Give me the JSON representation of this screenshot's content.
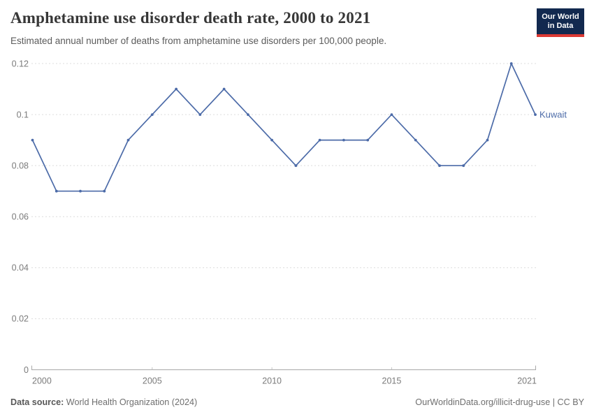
{
  "header": {
    "title": "Amphetamine use disorder death rate, 2000 to 2021",
    "subtitle": "Estimated annual number of deaths from amphetamine use disorders per 100,000 people."
  },
  "logo": {
    "line1": "Our World",
    "line2": "in Data",
    "bg_color": "#12294f",
    "accent_color": "#dc3a34"
  },
  "chart_data": {
    "type": "line",
    "title": "Amphetamine use disorder death rate, 2000 to 2021",
    "xlabel": "",
    "ylabel": "",
    "x": [
      2000,
      2001,
      2002,
      2003,
      2004,
      2005,
      2006,
      2007,
      2008,
      2009,
      2010,
      2011,
      2012,
      2013,
      2014,
      2015,
      2016,
      2017,
      2018,
      2019,
      2020,
      2021
    ],
    "series": [
      {
        "name": "Kuwait",
        "color": "#4c6ba8",
        "values": [
          0.09,
          0.07,
          0.07,
          0.07,
          0.09,
          0.1,
          0.11,
          0.1,
          0.11,
          0.1,
          0.09,
          0.08,
          0.09,
          0.09,
          0.09,
          0.1,
          0.09,
          0.08,
          0.08,
          0.09,
          0.12,
          0.1
        ]
      }
    ],
    "ylim": [
      0,
      0.12
    ],
    "y_ticks": [
      {
        "value": 0,
        "label": "0"
      },
      {
        "value": 0.02,
        "label": "0.02"
      },
      {
        "value": 0.04,
        "label": "0.04"
      },
      {
        "value": 0.06,
        "label": "0.06"
      },
      {
        "value": 0.08,
        "label": "0.08"
      },
      {
        "value": 0.1,
        "label": "0.1"
      },
      {
        "value": 0.12,
        "label": "0.12"
      }
    ],
    "x_ticks": [
      {
        "value": 2000,
        "label": "2000",
        "anchor": "start"
      },
      {
        "value": 2005,
        "label": "2005",
        "anchor": "middle"
      },
      {
        "value": 2010,
        "label": "2010",
        "anchor": "middle"
      },
      {
        "value": 2015,
        "label": "2015",
        "anchor": "middle"
      },
      {
        "value": 2021,
        "label": "2021",
        "anchor": "end"
      }
    ],
    "grid": "horizontal-dashed",
    "legend_position": "line-end-label",
    "entity_label": "Kuwait"
  },
  "footer": {
    "source_label": "Data source:",
    "source_value": "World Health Organization (2024)",
    "rights": "OurWorldinData.org/illicit-drug-use | CC BY"
  },
  "colors": {
    "line": "#4c6ba8",
    "grid": "#dcdcdc",
    "axis": "#a8a8a8",
    "minor_tick": "#c2c2c2",
    "tick_text": "#7b7b7b"
  }
}
